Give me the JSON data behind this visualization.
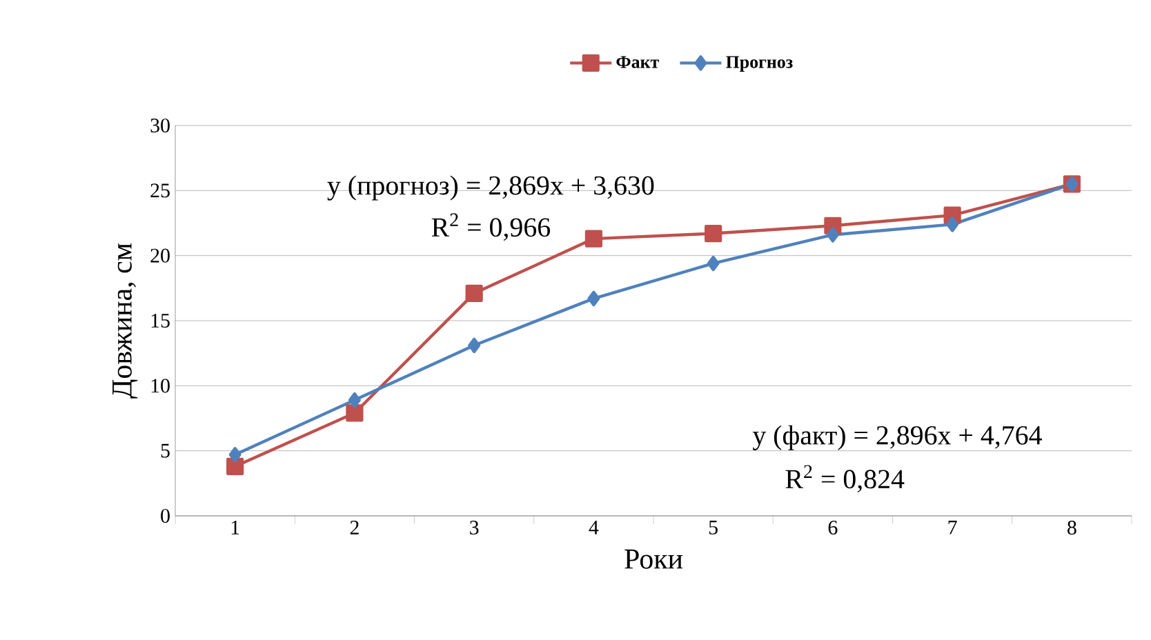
{
  "chart_data": {
    "type": "line",
    "xlabel": "Роки",
    "ylabel": "Довжина, см",
    "categories": [
      "1",
      "2",
      "3",
      "4",
      "5",
      "6",
      "7",
      "8"
    ],
    "series": [
      {
        "name": "Факт",
        "color": "#c0504d",
        "marker": "square",
        "values": [
          3.8,
          7.9,
          17.1,
          21.3,
          21.7,
          22.3,
          23.1,
          25.5
        ]
      },
      {
        "name": "Прогноз",
        "color": "#4f81bd",
        "marker": "diamond",
        "values": [
          4.7,
          8.9,
          13.1,
          16.7,
          19.4,
          21.6,
          22.4,
          25.5
        ]
      }
    ],
    "ylim": [
      0,
      30
    ],
    "yticks": [
      0,
      5,
      10,
      15,
      20,
      25,
      30
    ],
    "grid": "y",
    "legend": "top",
    "annotations": [
      "y (прогноз) = 2,869x + 3,630",
      "R$^{2}$ = 0,966",
      "y (факт) = 2,896x + 4,764",
      "R$^{2}$ = 0,824"
    ]
  }
}
